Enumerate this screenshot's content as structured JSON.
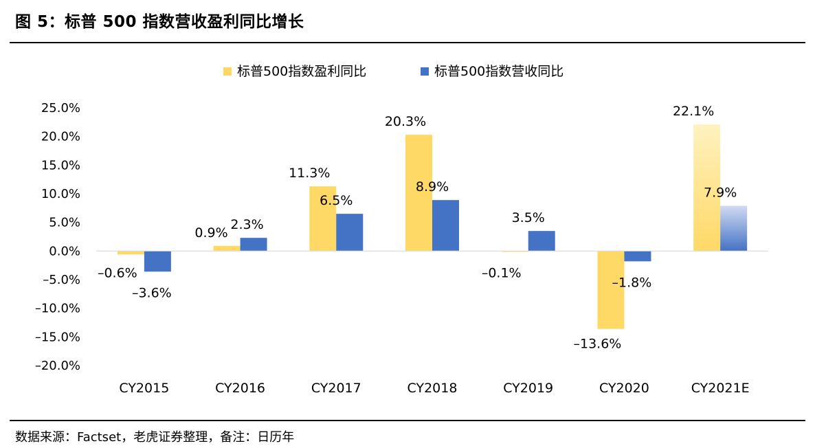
{
  "figure": {
    "title": "图 5：标普 500 指数营收盈利同比增长",
    "source": "数据来源：Factset，老虎证券整理，备注：日历年"
  },
  "colors": {
    "earnings": "#FFD966",
    "revenue": "#4472C4",
    "earnings_forecast_top": "#FFF2C0",
    "revenue_forecast_top": "#D0DAF2"
  },
  "chart_data": {
    "type": "bar",
    "title": "",
    "xlabel": "",
    "ylabel": "",
    "categories": [
      "CY2015",
      "CY2016",
      "CY2017",
      "CY2018",
      "CY2019",
      "CY2020",
      "CY2021E"
    ],
    "series": [
      {
        "name": "标普500指数盈利同比",
        "values": [
          -0.6,
          0.9,
          11.3,
          20.3,
          -0.1,
          -13.6,
          22.1
        ],
        "labels": [
          "–0.6%",
          "0.9%",
          "11.3%",
          "20.3%",
          "–0.1%",
          "–13.6%",
          "22.1%"
        ]
      },
      {
        "name": "标普500指数营收同比",
        "values": [
          -3.6,
          2.3,
          6.5,
          8.9,
          3.5,
          -1.8,
          7.9
        ],
        "labels": [
          "–3.6%",
          "2.3%",
          "6.5%",
          "8.9%",
          "3.5%",
          "–1.8%",
          "7.9%"
        ]
      }
    ],
    "forecast_category": "CY2021E",
    "yticks": [
      25,
      20,
      15,
      10,
      5,
      0,
      -5,
      -10,
      -15,
      -20
    ],
    "ytick_labels": [
      "25.0%",
      "20.0%",
      "15.0%",
      "10.0%",
      "5.0%",
      "0.0%",
      "–5.0%",
      "–10.0%",
      "–15.0%",
      "–20.0%"
    ],
    "ylim": [
      -20,
      25
    ],
    "grid": false,
    "legend": "top-center"
  }
}
